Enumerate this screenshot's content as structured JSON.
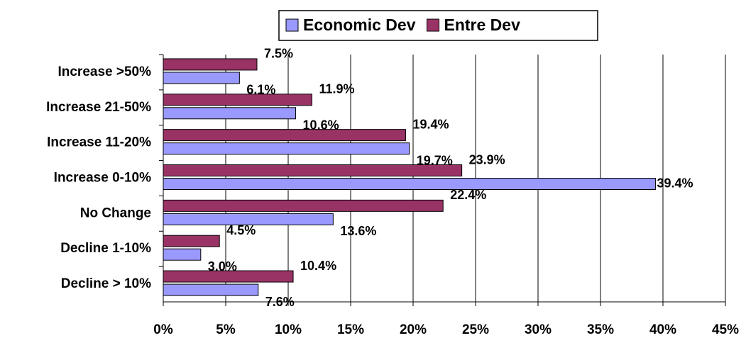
{
  "chart_data": {
    "type": "hbar",
    "categories": [
      "Increase >50%",
      "Increase 21-50%",
      "Increase 11-20%",
      "Increase 0-10%",
      "No Change",
      "Decline 1-10%",
      "Decline > 10%"
    ],
    "series": [
      {
        "name": "Economic Dev",
        "color": "#9999ff",
        "values": [
          6.1,
          10.6,
          19.7,
          39.4,
          13.6,
          3.0,
          7.6
        ],
        "value_labels": [
          "6.1%",
          "10.6%",
          "19.7%",
          "39.4%",
          "13.6%",
          "3.0%",
          "7.6%"
        ]
      },
      {
        "name": "Entre Dev",
        "color": "#993366",
        "values": [
          7.5,
          11.9,
          19.4,
          23.9,
          22.4,
          4.5,
          10.4
        ],
        "value_labels": [
          "7.5%",
          "11.9%",
          "19.4%",
          "23.9%",
          "22.4%",
          "4.5%",
          "10.4%"
        ]
      }
    ],
    "xlim": [
      0,
      45
    ],
    "xticks": [
      {
        "value": 0,
        "label": "0%"
      },
      {
        "value": 5,
        "label": "5%"
      },
      {
        "value": 10,
        "label": "10%"
      },
      {
        "value": 15,
        "label": "15%"
      },
      {
        "value": 20,
        "label": "20%"
      },
      {
        "value": 25,
        "label": "25%"
      },
      {
        "value": 30,
        "label": "30%"
      },
      {
        "value": 35,
        "label": "35%"
      },
      {
        "value": 40,
        "label": "40%"
      },
      {
        "value": 45,
        "label": "45%"
      }
    ],
    "grid": true,
    "legend": "top"
  }
}
